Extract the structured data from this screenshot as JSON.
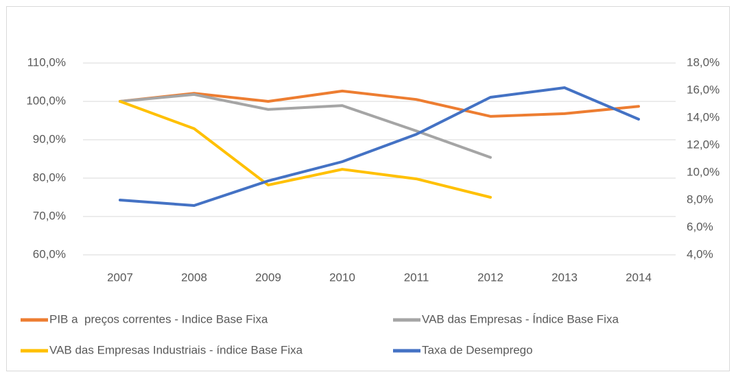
{
  "chart_data": {
    "type": "line",
    "categories": [
      "2007",
      "2008",
      "2009",
      "2010",
      "2011",
      "2012",
      "2013",
      "2014"
    ],
    "series": [
      {
        "name": "PIB a  preços correntes - Indice Base Fixa",
        "color": "#ED7D31",
        "values": [
          100.0,
          102.1,
          100.0,
          102.7,
          100.5,
          96.1,
          96.8,
          98.7
        ]
      },
      {
        "name": "VAB das Empresas - Índice Base Fixa",
        "color": "#A5A5A5",
        "values": [
          100.0,
          101.8,
          97.9,
          98.9,
          92.3,
          85.4,
          null,
          null
        ]
      },
      {
        "name": "VAB das Empresas Industriais - índice Base Fixa",
        "color": "#FFC000",
        "values": [
          100.0,
          92.9,
          78.2,
          82.3,
          79.8,
          75.0,
          null,
          null
        ]
      },
      {
        "name": "Taxa de Desemprego",
        "color": "#4472C4",
        "axis": "y2",
        "values": [
          8.0,
          7.6,
          9.4,
          10.8,
          12.8,
          15.5,
          16.2,
          13.9
        ]
      }
    ],
    "ylim": [
      60,
      110
    ],
    "yticks": [
      {
        "value": 60,
        "label": "60,0%"
      },
      {
        "value": 70,
        "label": "70,0%"
      },
      {
        "value": 80,
        "label": "80,0%"
      },
      {
        "value": 90,
        "label": "90,0%"
      },
      {
        "value": 100,
        "label": "100,0%"
      },
      {
        "value": 110,
        "label": "110,0%"
      }
    ],
    "y2lim": [
      4,
      18
    ],
    "y2ticks": [
      {
        "value": 4,
        "label": "4,0%"
      },
      {
        "value": 6,
        "label": "6,0%"
      },
      {
        "value": 8,
        "label": "8,0%"
      },
      {
        "value": 10,
        "label": "10,0%"
      },
      {
        "value": 12,
        "label": "12,0%"
      },
      {
        "value": 14,
        "label": "14,0%"
      },
      {
        "value": 16,
        "label": "16,0%"
      },
      {
        "value": 18,
        "label": "18,0%"
      }
    ],
    "grid": true,
    "legend": "bottom"
  }
}
